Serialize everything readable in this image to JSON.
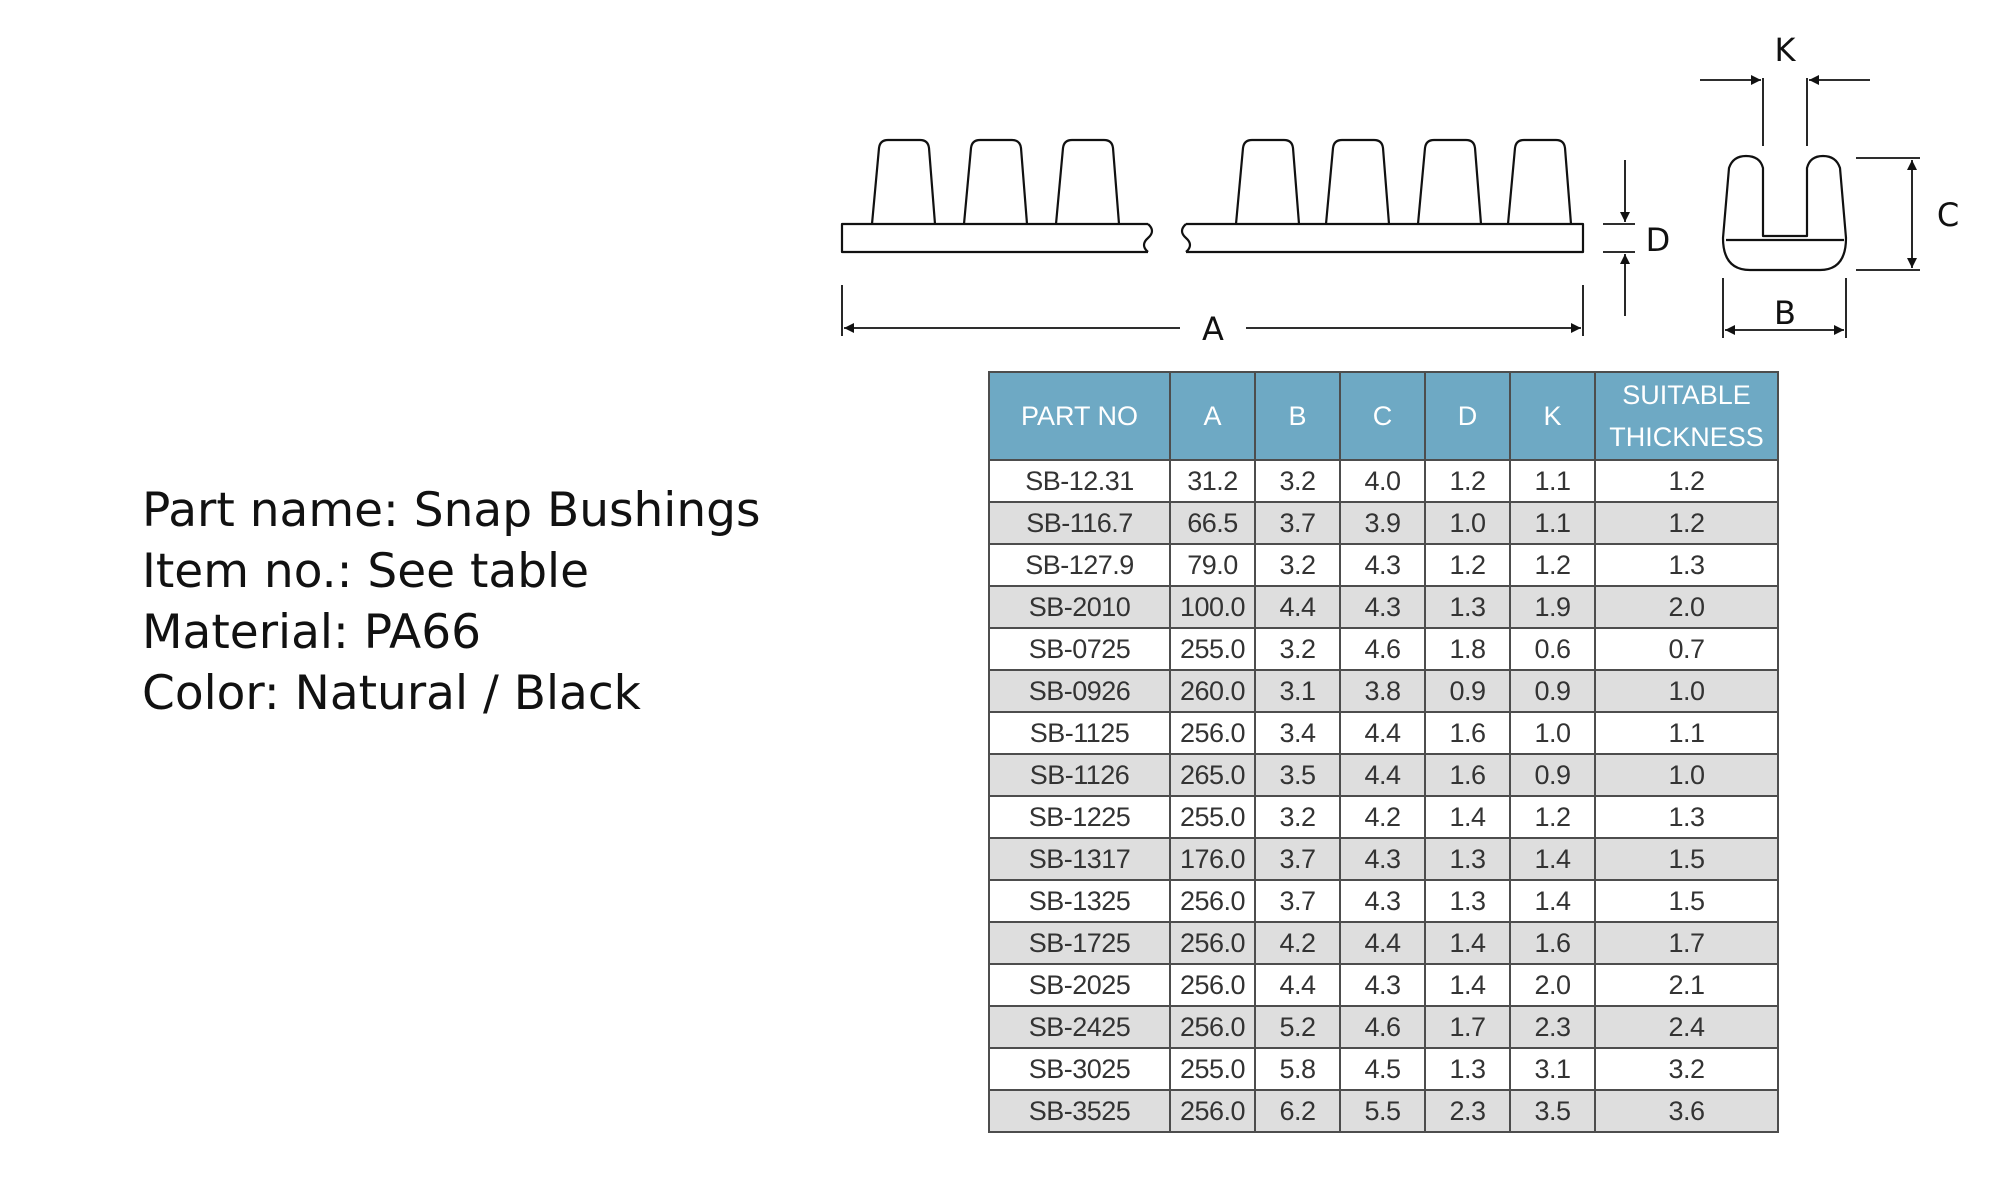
{
  "part_info": {
    "part_name": "Part name: Snap Bushings",
    "item_no": "Item no.: See table",
    "material": "Material: PA66",
    "color": "Color: Natural / Black"
  },
  "drawing": {
    "labels": {
      "a": "A",
      "b": "B",
      "c": "C",
      "d": "D",
      "k": "K"
    }
  },
  "table": {
    "headers": [
      "PART NO",
      "A",
      "B",
      "C",
      "D",
      "K",
      "SUITABLE THICKNESS"
    ],
    "rows": [
      [
        "SB-12.31",
        "31.2",
        "3.2",
        "4.0",
        "1.2",
        "1.1",
        "1.2"
      ],
      [
        "SB-116.7",
        "66.5",
        "3.7",
        "3.9",
        "1.0",
        "1.1",
        "1.2"
      ],
      [
        "SB-127.9",
        "79.0",
        "3.2",
        "4.3",
        "1.2",
        "1.2",
        "1.3"
      ],
      [
        "SB-2010",
        "100.0",
        "4.4",
        "4.3",
        "1.3",
        "1.9",
        "2.0"
      ],
      [
        "SB-0725",
        "255.0",
        "3.2",
        "4.6",
        "1.8",
        "0.6",
        "0.7"
      ],
      [
        "SB-0926",
        "260.0",
        "3.1",
        "3.8",
        "0.9",
        "0.9",
        "1.0"
      ],
      [
        "SB-1125",
        "256.0",
        "3.4",
        "4.4",
        "1.6",
        "1.0",
        "1.1"
      ],
      [
        "SB-1126",
        "265.0",
        "3.5",
        "4.4",
        "1.6",
        "0.9",
        "1.0"
      ],
      [
        "SB-1225",
        "255.0",
        "3.2",
        "4.2",
        "1.4",
        "1.2",
        "1.3"
      ],
      [
        "SB-1317",
        "176.0",
        "3.7",
        "4.3",
        "1.3",
        "1.4",
        "1.5"
      ],
      [
        "SB-1325",
        "256.0",
        "3.7",
        "4.3",
        "1.3",
        "1.4",
        "1.5"
      ],
      [
        "SB-1725",
        "256.0",
        "4.2",
        "4.4",
        "1.4",
        "1.6",
        "1.7"
      ],
      [
        "SB-2025",
        "256.0",
        "4.4",
        "4.3",
        "1.4",
        "2.0",
        "2.1"
      ],
      [
        "SB-2425",
        "256.0",
        "5.2",
        "4.6",
        "1.7",
        "2.3",
        "2.4"
      ],
      [
        "SB-3025",
        "255.0",
        "5.8",
        "4.5",
        "1.3",
        "3.1",
        "3.2"
      ],
      [
        "SB-3525",
        "256.0",
        "6.2",
        "5.5",
        "2.3",
        "3.5",
        "3.6"
      ]
    ]
  },
  "colors": {
    "header_bg": "#6ea9c4",
    "alt_row_bg": "#dedede",
    "border": "#4d4d4d"
  }
}
